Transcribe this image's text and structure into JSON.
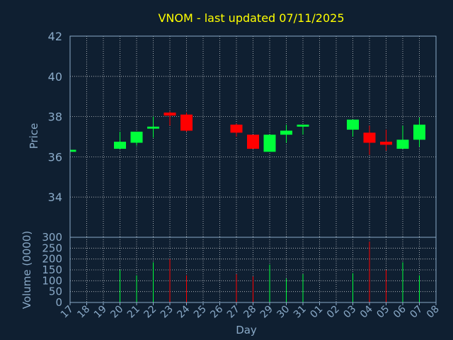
{
  "chart_data": {
    "type": "candlestick",
    "title": "VNOM - last updated 07/11/2025",
    "xlabel": "Day",
    "ylabel": "Price",
    "volume_label": "Volume (0000)",
    "ylim": [
      32,
      42
    ],
    "yticks": [
      34,
      36,
      38,
      40,
      42
    ],
    "volume_ylim": [
      0,
      300
    ],
    "volume_yticks": [
      0,
      50,
      100,
      150,
      200,
      250,
      300
    ],
    "days": [
      "17",
      "18",
      "19",
      "20",
      "21",
      "22",
      "23",
      "24",
      "25",
      "26",
      "27",
      "28",
      "29",
      "30",
      "31",
      "01",
      "02",
      "03",
      "04",
      "05",
      "06",
      "07",
      "08"
    ],
    "candles": [
      {
        "day": "17",
        "open": 36.25,
        "close": 36.35,
        "high": 36.35,
        "low": 36.25,
        "volume": 0
      },
      {
        "day": "20",
        "open": 36.4,
        "close": 36.75,
        "high": 37.25,
        "low": 36.4,
        "volume": 150
      },
      {
        "day": "21",
        "open": 36.7,
        "close": 37.25,
        "high": 37.25,
        "low": 36.55,
        "volume": 125
      },
      {
        "day": "22",
        "open": 37.4,
        "close": 37.5,
        "high": 38.0,
        "low": 36.95,
        "volume": 185
      },
      {
        "day": "23",
        "open": 38.2,
        "close": 38.05,
        "high": 38.25,
        "low": 37.55,
        "volume": 200
      },
      {
        "day": "24",
        "open": 38.1,
        "close": 37.3,
        "high": 38.2,
        "low": 37.25,
        "volume": 125
      },
      {
        "day": "27",
        "open": 37.6,
        "close": 37.2,
        "high": 37.65,
        "low": 37.0,
        "volume": 130
      },
      {
        "day": "28",
        "open": 37.1,
        "close": 36.4,
        "high": 37.1,
        "low": 36.4,
        "volume": 120
      },
      {
        "day": "29",
        "open": 36.25,
        "close": 37.1,
        "high": 37.1,
        "low": 36.25,
        "volume": 175
      },
      {
        "day": "30",
        "open": 37.1,
        "close": 37.3,
        "high": 37.6,
        "low": 36.7,
        "volume": 110
      },
      {
        "day": "31",
        "open": 37.5,
        "close": 37.6,
        "high": 37.6,
        "low": 37.1,
        "volume": 130
      },
      {
        "day": "03",
        "open": 37.35,
        "close": 37.85,
        "high": 37.85,
        "low": 37.0,
        "volume": 135
      },
      {
        "day": "04",
        "open": 37.2,
        "close": 36.7,
        "high": 37.55,
        "low": 36.1,
        "volume": 280
      },
      {
        "day": "05",
        "open": 36.75,
        "close": 36.6,
        "high": 37.35,
        "low": 36.3,
        "volume": 150
      },
      {
        "day": "06",
        "open": 36.4,
        "close": 36.85,
        "high": 37.55,
        "low": 36.4,
        "volume": 185
      },
      {
        "day": "07",
        "open": 36.85,
        "close": 37.6,
        "high": 37.95,
        "low": 36.5,
        "volume": 125
      }
    ],
    "grid": true,
    "colors": {
      "background": "#0f1f31",
      "title": "#ffff00",
      "axis_text": "#8aaac8",
      "up": "#00ff3a",
      "down": "#ff0000",
      "frame": "#8aaac8",
      "grid": "#ffffff"
    }
  }
}
